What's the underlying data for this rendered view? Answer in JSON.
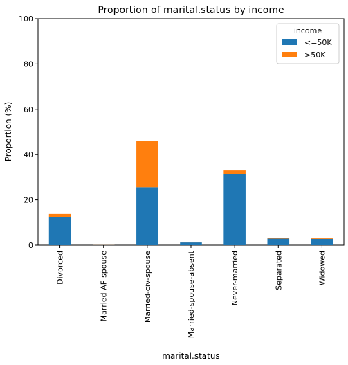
{
  "chart_data": {
    "type": "bar",
    "stacked": true,
    "title": "Proportion of marital.status by income",
    "xlabel": "marital.status",
    "ylabel": "Proportion (%)",
    "ylim": [
      0,
      100
    ],
    "yticks": [
      0,
      20,
      40,
      60,
      80,
      100
    ],
    "categories": [
      "Divorced",
      "Married-AF-spouse",
      "Married-civ-spouse",
      "Married-spouse-absent",
      "Never-married",
      "Separated",
      "Widowed"
    ],
    "series": [
      {
        "name": "<=50K",
        "color": "#1f77b4",
        "values": [
          12.5,
          0.05,
          25.6,
          1.2,
          31.5,
          2.9,
          2.8
        ]
      },
      {
        "name": ">50K",
        "color": "#ff7f0e",
        "values": [
          1.3,
          0.05,
          20.4,
          0.1,
          1.5,
          0.2,
          0.3
        ]
      }
    ],
    "legend": {
      "title": "income",
      "placement": "top-right"
    },
    "grid": false
  }
}
